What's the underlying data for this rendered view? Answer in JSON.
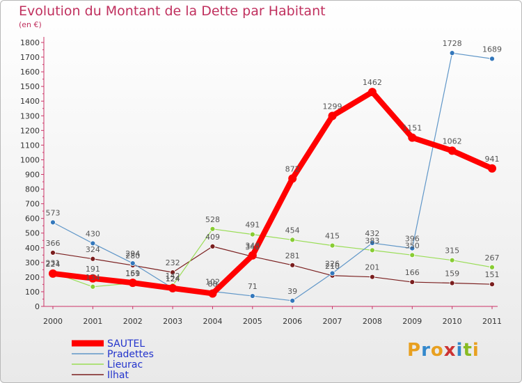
{
  "header": {
    "title": "Evolution du Montant de la Dette par Habitant",
    "unit": "(en €)"
  },
  "logo": {
    "text": "Proxiti",
    "letters": [
      "P",
      "r",
      "o",
      "x",
      "i",
      "t",
      "i"
    ],
    "colors": [
      "#e8a020",
      "#3388cc",
      "#e8a020",
      "#cc3333",
      "#3388cc",
      "#88bb22",
      "#e8a020"
    ]
  },
  "chart_data": {
    "type": "line",
    "title": "Evolution du Montant de la Dette par Habitant",
    "ylabel": "(en €)",
    "xlabel": "",
    "ylim": [
      0,
      1800
    ],
    "yticks": [
      0,
      100,
      200,
      300,
      400,
      500,
      600,
      700,
      800,
      900,
      1000,
      1100,
      1200,
      1300,
      1400,
      1500,
      1600,
      1700,
      1800
    ],
    "categories": [
      "2000",
      "2001",
      "2002",
      "2003",
      "2004",
      "2005",
      "2006",
      "2007",
      "2008",
      "2009",
      "2010",
      "2011"
    ],
    "grid": false,
    "legend_position": "bottom-left",
    "series": [
      {
        "name": "Ilhat",
        "color": "#7a1e1e",
        "marker": "#7a1e1e",
        "width": 1.2,
        "values": [
          366,
          324,
          280,
          232,
          409,
          340,
          281,
          210,
          201,
          166,
          159,
          151
        ],
        "labels": [
          "366",
          "324",
          "280",
          "232",
          "409",
          "340",
          "281",
          "210",
          "201",
          "166",
          "159",
          "151"
        ]
      },
      {
        "name": "Lieurac",
        "color": "#99dd55",
        "marker": "#88cc33",
        "width": 1.2,
        "values": [
          231,
          134,
          159,
          142,
          528,
          491,
          454,
          415,
          383,
          350,
          315,
          267
        ],
        "labels": [
          "231",
          "134",
          "159",
          "142",
          "528",
          "491",
          "454",
          "415",
          "383",
          "350",
          "315",
          "267"
        ]
      },
      {
        "name": "Pradettes",
        "color": "#5f96c8",
        "marker": "#3377bb",
        "width": 1.2,
        "values": [
          573,
          430,
          294,
          124,
          102,
          71,
          39,
          226,
          432,
          396,
          1728,
          1689
        ],
        "labels": [
          "573",
          "430",
          "294",
          "124",
          "102",
          "71",
          "39",
          "226",
          "432",
          "396",
          "1728",
          "1689"
        ]
      },
      {
        "name": "SAUTEL",
        "color": "#ff0000",
        "marker": "#ff0000",
        "width": 8,
        "values": [
          224,
          191,
          161,
          124,
          88,
          348,
          872,
          1299,
          1462,
          1151,
          1062,
          941
        ],
        "labels": [
          "224",
          "191",
          "161",
          "124",
          "88",
          "348",
          "872",
          "1299",
          "1462",
          "1151",
          "1062",
          "941"
        ]
      }
    ],
    "legend": [
      "SAUTEL",
      "Pradettes",
      "Lieurac",
      "Ilhat"
    ]
  }
}
